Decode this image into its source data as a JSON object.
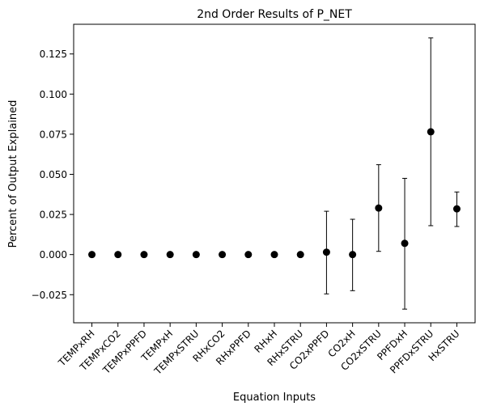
{
  "chart_data": {
    "type": "scatter",
    "title": "2nd Order Results of P_NET",
    "xlabel": "Equation Inputs",
    "ylabel": "Percent of Output Explained",
    "categories": [
      "TEMPxRH",
      "TEMPxCO2",
      "TEMPxPPFD",
      "TEMPxH",
      "TEMPxSTRU",
      "RHxCO2",
      "RHxPPFD",
      "RHxH",
      "RHxSTRU",
      "CO2xPPFD",
      "CO2xH",
      "CO2xSTRU",
      "PPFDxH",
      "PPFDxSTRU",
      "HxSTRU"
    ],
    "values": [
      0,
      0,
      0,
      0,
      0,
      0,
      0,
      0,
      0,
      0.0015,
      0.0,
      0.029,
      0.007,
      0.0765,
      0.0285
    ],
    "error_low": [
      0,
      0,
      0,
      0,
      0,
      0,
      0,
      0,
      0,
      -0.0245,
      -0.0225,
      0.002,
      -0.034,
      0.018,
      0.0175
    ],
    "error_high": [
      0,
      0,
      0,
      0,
      0,
      0,
      0,
      0,
      0,
      0.027,
      0.022,
      0.056,
      0.0475,
      0.135,
      0.039
    ],
    "yticks": [
      -0.025,
      0.0,
      0.025,
      0.05,
      0.075,
      0.1,
      0.125
    ],
    "ytick_labels": [
      "−0.025",
      "0.000",
      "0.025",
      "0.050",
      "0.075",
      "0.100",
      "0.125"
    ],
    "ylim": [
      -0.0425,
      0.1435
    ],
    "xlim": [
      -0.7,
      14.7
    ],
    "grid": false,
    "marker_color": "#000000"
  }
}
